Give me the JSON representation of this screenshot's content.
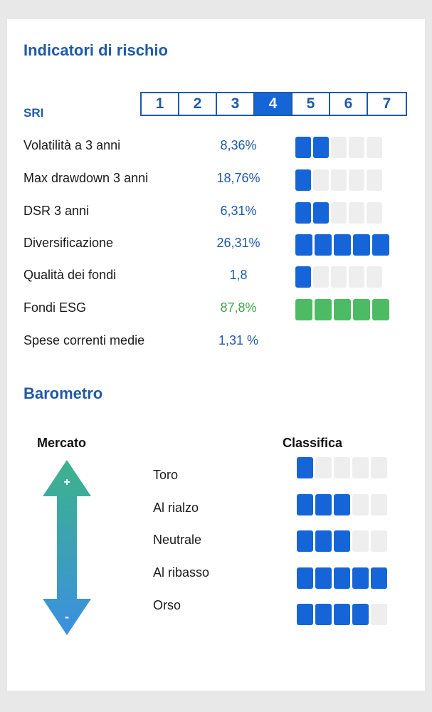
{
  "indicators": {
    "title": "Indicatori di rischio",
    "sri": {
      "label": "SRI",
      "levels": [
        "1",
        "2",
        "3",
        "4",
        "5",
        "6",
        "7"
      ],
      "selected": 4
    },
    "rows": [
      {
        "label": "Volatilità a 3 anni",
        "value": "8,36%",
        "rating": 2,
        "max": 5,
        "color": "#1565d8"
      },
      {
        "label": "Max drawdown 3 anni",
        "value": "18,76%",
        "rating": 1,
        "max": 5,
        "color": "#1565d8"
      },
      {
        "label": "DSR 3 anni",
        "value": "6,31%",
        "rating": 2,
        "max": 5,
        "color": "#1565d8"
      },
      {
        "label": "Diversificazione",
        "value": "26,31%",
        "rating": 5,
        "max": 5,
        "color": "#1565d8"
      },
      {
        "label": "Qualità dei fondi",
        "value": "1,8",
        "rating": 1,
        "max": 5,
        "color": "#1565d8"
      },
      {
        "label": "Fondi ESG",
        "value": "87,8%",
        "rating": 5,
        "max": 5,
        "color": "#4dbb63"
      },
      {
        "label": "Spese correnti medie",
        "value": "1,31 %",
        "rating": 0,
        "max": 0,
        "color": "#1565d8"
      }
    ]
  },
  "barometro": {
    "title": "Barometro",
    "market_header": "Mercato",
    "ranking_header": "Classifica",
    "arrow_top_symbol": "+",
    "arrow_bottom_symbol": "-",
    "rows": [
      {
        "label": "Toro",
        "rating": 1,
        "max": 5
      },
      {
        "label": "Al rialzo",
        "rating": 3,
        "max": 5
      },
      {
        "label": "Neutrale",
        "rating": 3,
        "max": 5
      },
      {
        "label": "Al ribasso",
        "rating": 5,
        "max": 5
      },
      {
        "label": "Orso",
        "rating": 4,
        "max": 5
      }
    ]
  },
  "colors": {
    "accent_blue": "#1f5aa6",
    "bar_blue": "#1565d8",
    "bar_green": "#4dbb63",
    "bar_empty": "#eeeeee",
    "arrow_top": "#3db38a",
    "arrow_bottom": "#3b8fe0"
  }
}
